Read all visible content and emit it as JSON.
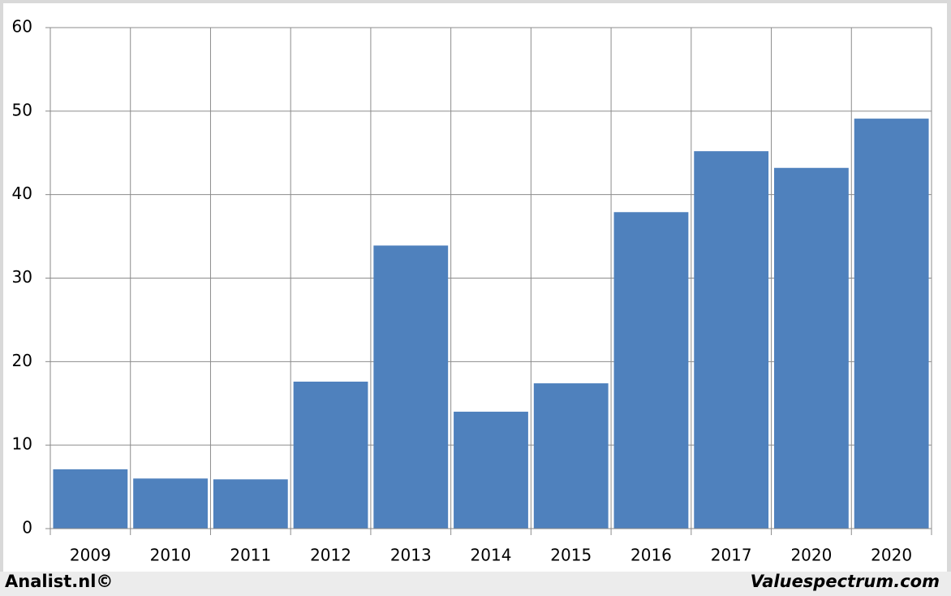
{
  "chart_data": {
    "type": "bar",
    "categories": [
      "2009",
      "2010",
      "2011",
      "2012",
      "2013",
      "2014",
      "2015",
      "2016",
      "2017",
      "2020",
      "2020"
    ],
    "values": [
      7.1,
      6.0,
      5.9,
      17.6,
      33.9,
      14.0,
      17.4,
      37.9,
      45.2,
      43.2,
      49.1
    ],
    "color": "#4f81bd",
    "ylim": [
      0,
      60
    ],
    "yticks": [
      0,
      10,
      20,
      30,
      40,
      50,
      60
    ],
    "grid": true,
    "annotations": [
      "Analist.nl©",
      "Valuespectrum.com"
    ]
  }
}
